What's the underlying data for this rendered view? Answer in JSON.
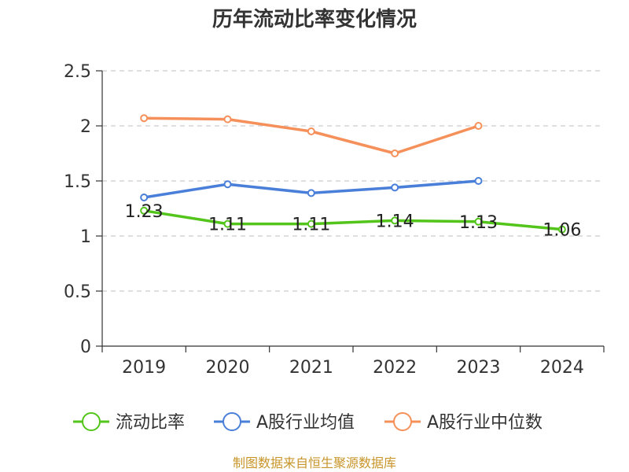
{
  "chart_data": {
    "type": "line",
    "title": "历年流动比率变化情况",
    "xlabel": "",
    "ylabel": "",
    "categories": [
      "2019",
      "2020",
      "2021",
      "2022",
      "2023",
      "2024"
    ],
    "ylim": [
      0,
      2.5
    ],
    "yticks": [
      "0",
      "0.5",
      "1",
      "1.5",
      "2",
      "2.5"
    ],
    "grid": true,
    "legend_position": "bottom",
    "series": [
      {
        "name": "流动比率",
        "color": "#52c41a",
        "values": [
          1.23,
          1.11,
          1.11,
          1.14,
          1.13,
          1.06
        ],
        "labels": [
          "1.23",
          "1.11",
          "1.11",
          "1.14",
          "1.13",
          "1.06"
        ]
      },
      {
        "name": "A股行业均值",
        "color": "#4a7fd9",
        "values": [
          1.35,
          1.47,
          1.39,
          1.44,
          1.5,
          null
        ]
      },
      {
        "name": "A股行业中位数",
        "color": "#f5905a",
        "values": [
          2.07,
          2.06,
          1.95,
          1.75,
          2.0,
          null
        ]
      }
    ]
  },
  "source": "制图数据来自恒生聚源数据库"
}
